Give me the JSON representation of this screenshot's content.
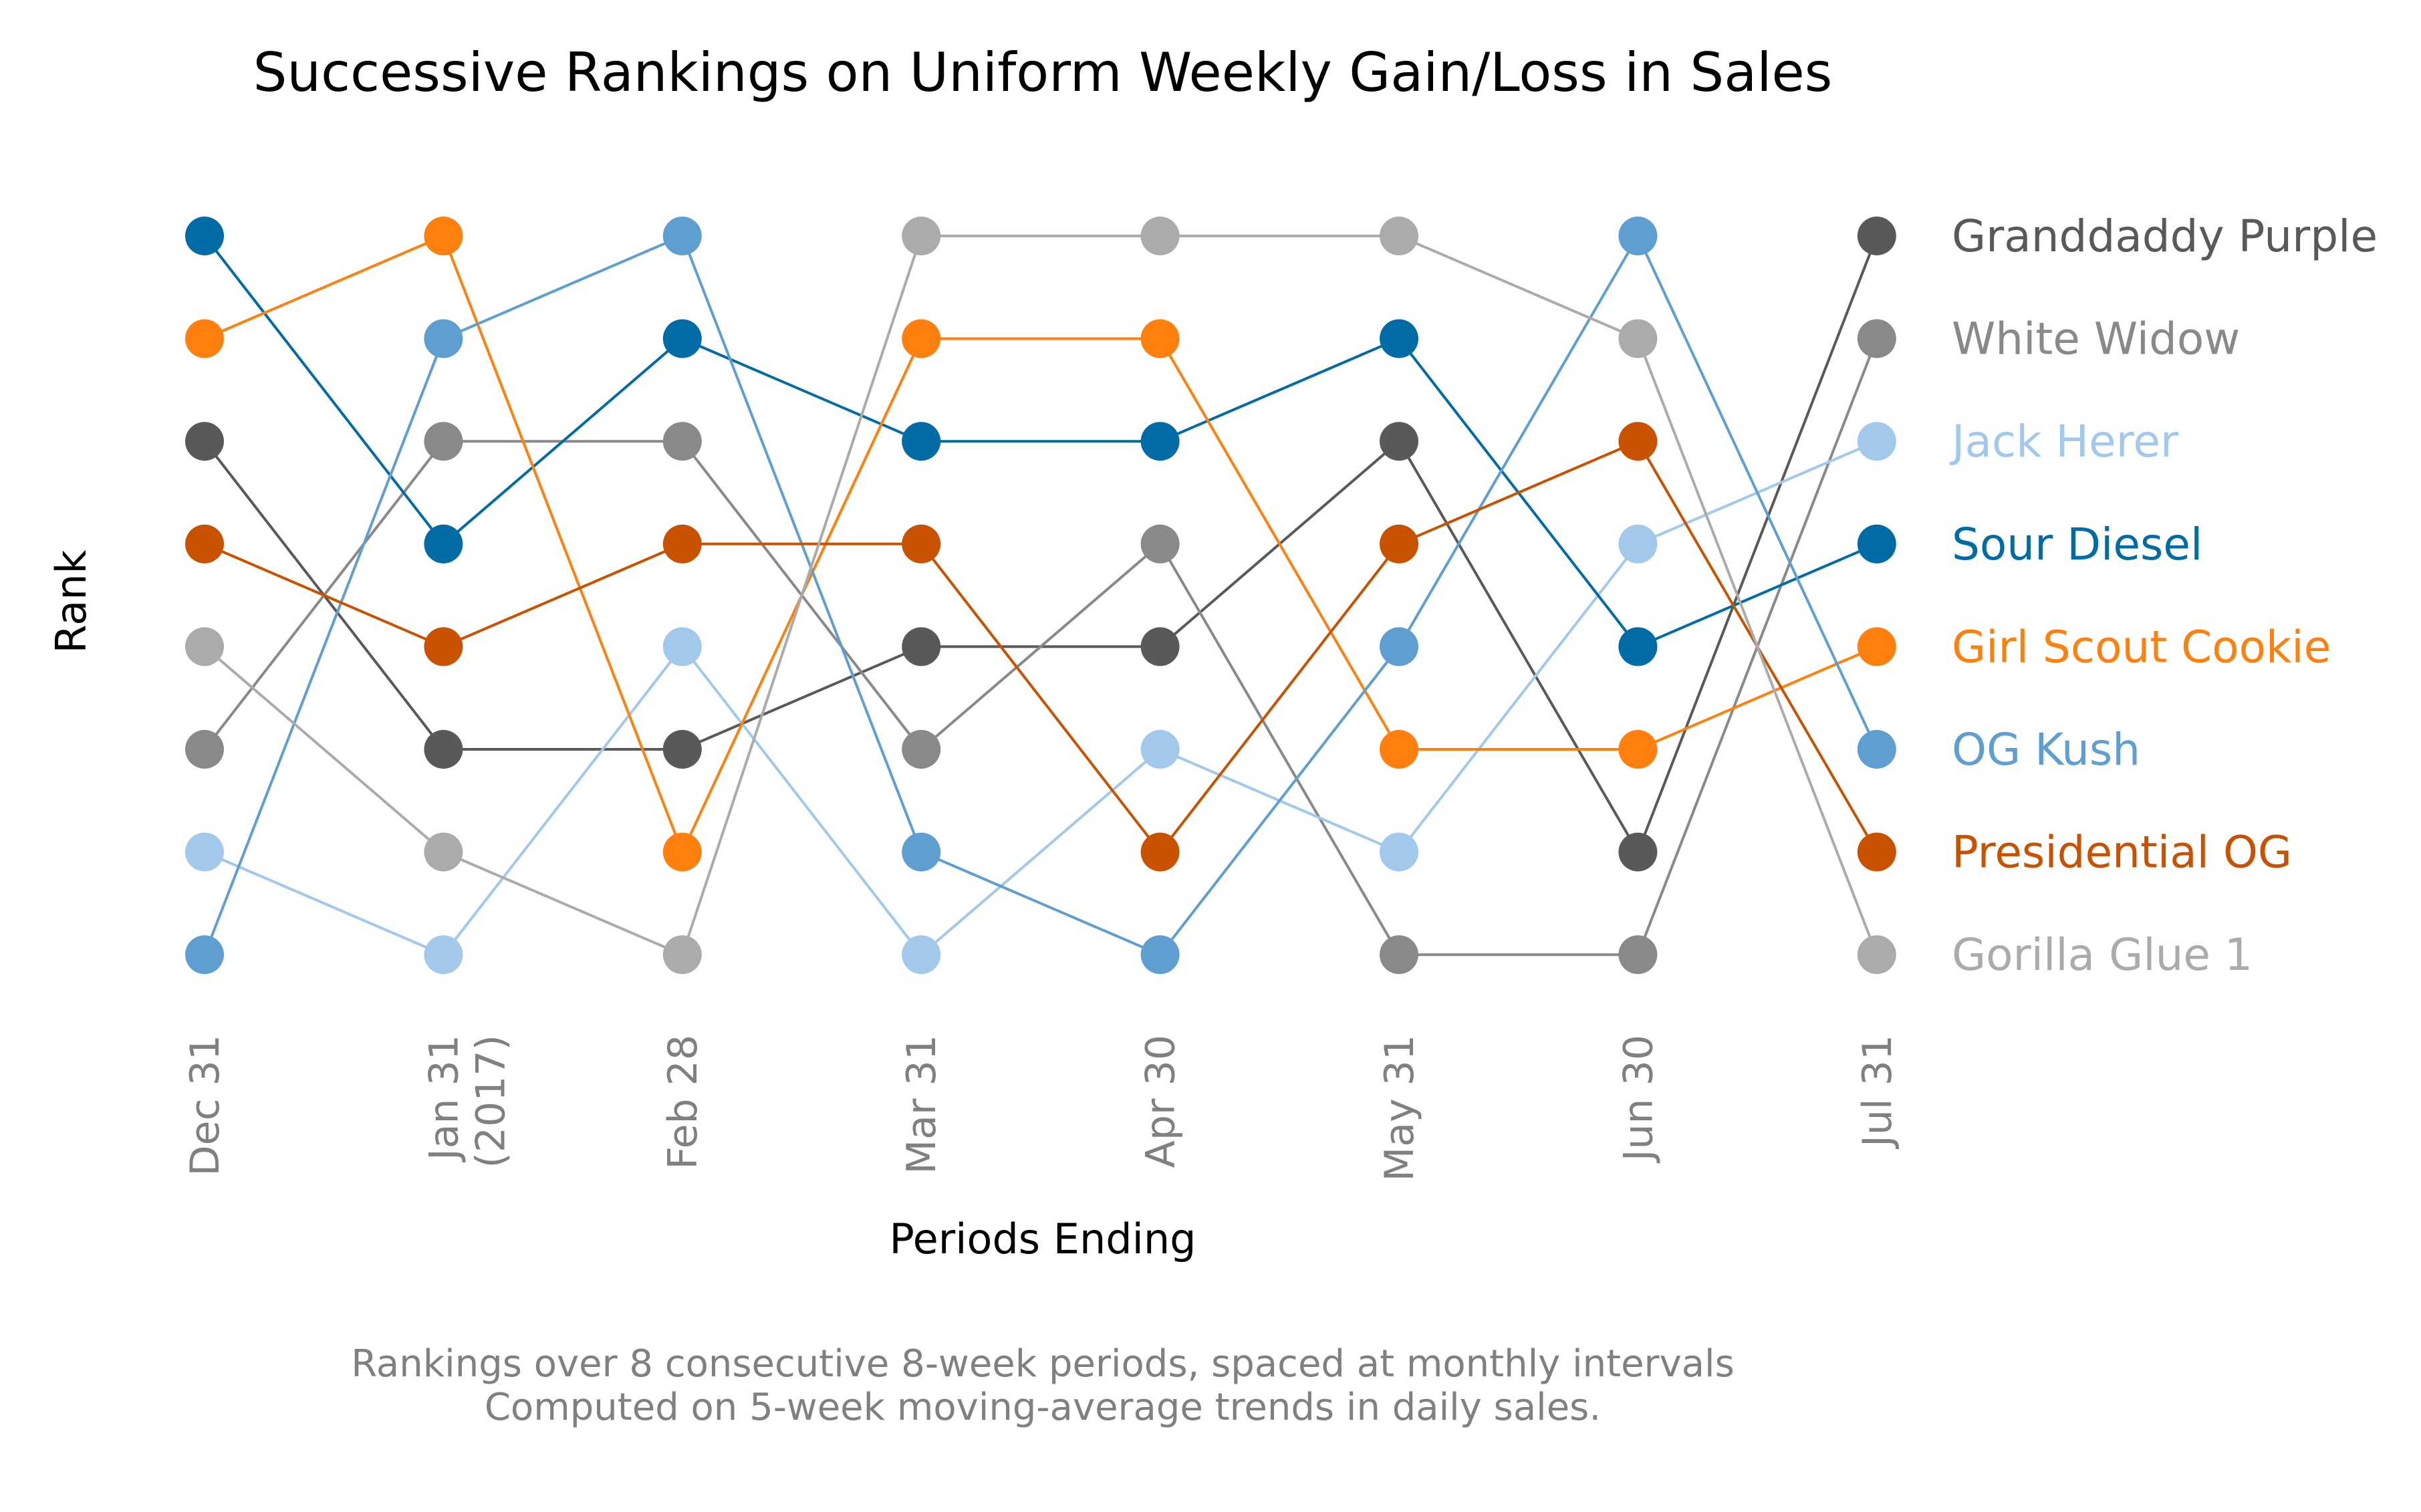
{
  "chart_data": {
    "type": "line",
    "title": "Successive Rankings on Uniform Weekly Gain/Loss in Sales",
    "xlabel": "Periods Ending",
    "ylabel": "Rank",
    "caption_lines": [
      "Rankings over 8 consecutive 8-week periods, spaced at monthly intervals",
      "Computed on 5-week moving-average trends in daily sales."
    ],
    "x_tick_labels": [
      [
        "Dec 31"
      ],
      [
        "Jan 31",
        "(2017)"
      ],
      [
        "Feb 28"
      ],
      [
        "Mar 31"
      ],
      [
        "Apr 30"
      ],
      [
        "May 31"
      ],
      [
        "Jun 30"
      ],
      [
        "Jul 31"
      ]
    ],
    "x_months": [
      0,
      1,
      2,
      3,
      4,
      5,
      6,
      7
    ],
    "ylim": [
      1,
      8
    ],
    "y_inverted": true,
    "grid": false,
    "legend_placement": "right, aligned with final ranks",
    "series": [
      {
        "name": "Granddaddy Purple",
        "color": "#595959",
        "ranks": [
          3,
          6,
          6,
          5,
          5,
          3,
          7,
          1
        ]
      },
      {
        "name": "White Widow",
        "color": "#898989",
        "ranks": [
          6,
          3,
          3,
          6,
          4,
          8,
          8,
          2
        ]
      },
      {
        "name": "Jack Herer",
        "color": "#a2c8ec",
        "ranks": [
          7,
          8,
          5,
          8,
          6,
          7,
          4,
          3
        ]
      },
      {
        "name": "Sour Diesel",
        "color": "#006ba4",
        "ranks": [
          1,
          4,
          2,
          3,
          3,
          2,
          5,
          4
        ]
      },
      {
        "name": "Girl Scout Cookie",
        "color": "#ff800e",
        "ranks": [
          2,
          1,
          7,
          2,
          2,
          6,
          6,
          5
        ]
      },
      {
        "name": "OG Kush",
        "color": "#5f9ed1",
        "ranks": [
          8,
          2,
          1,
          7,
          8,
          5,
          1,
          6
        ]
      },
      {
        "name": "Presidential OG",
        "color": "#c85200",
        "ranks": [
          4,
          5,
          4,
          4,
          7,
          4,
          3,
          7
        ]
      },
      {
        "name": "Gorilla Glue 1",
        "color": "#ababab",
        "ranks": [
          5,
          7,
          8,
          1,
          1,
          1,
          2,
          8
        ]
      }
    ]
  }
}
